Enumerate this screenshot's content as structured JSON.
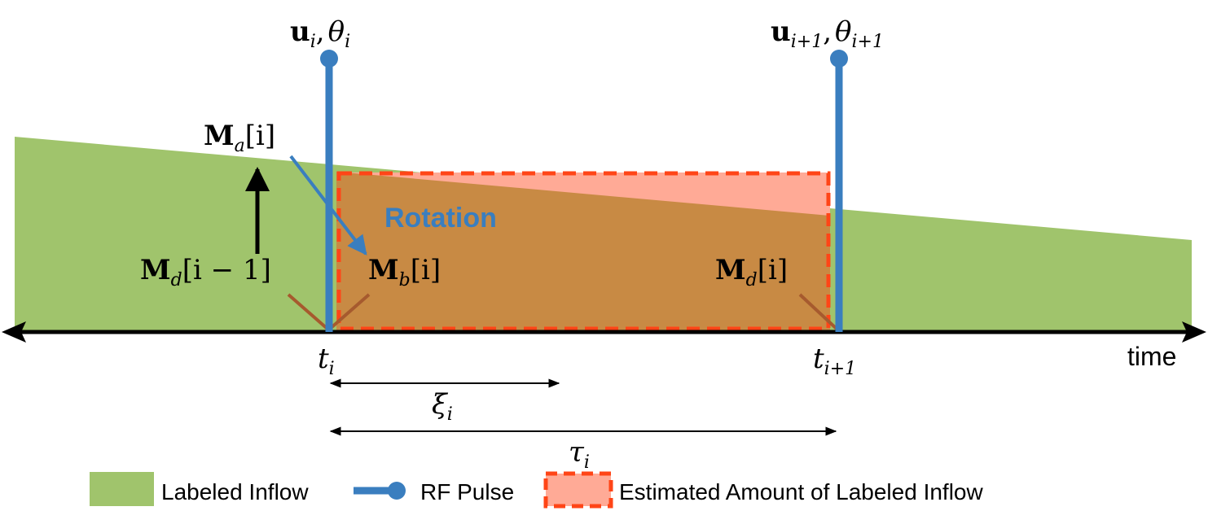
{
  "colors": {
    "labeled_inflow": "#a0c46c",
    "estimated_fill": "#ffaa96",
    "overlap_fill": "#c88a44",
    "estimated_border": "#ff4517",
    "rf_pulse": "#3a7ebf",
    "axis": "#000000",
    "diagonal": "#a65a2e"
  },
  "labels": {
    "pulse_i_vec": "u",
    "pulse_i_vec_sub": "i",
    "pulse_i_angle": "θ",
    "pulse_i_angle_sub": "i",
    "pulse_next_vec": "u",
    "pulse_next_vec_sub": "i+1",
    "pulse_next_angle": "θ",
    "pulse_next_angle_sub": "i+1",
    "comma": ",",
    "m_a": "M",
    "m_a_sub": "a",
    "m_a_idx": "[i]",
    "m_d_prev": "M",
    "m_d_prev_sub": "d",
    "m_d_prev_idx": "[i − 1]",
    "m_b": "M",
    "m_b_sub": "b",
    "m_b_idx": "[i]",
    "m_d": "M",
    "m_d_sub": "d",
    "m_d_idx": "[i]",
    "rotation": "Rotation",
    "t_i": "t",
    "t_i_sub": "i",
    "t_next": "t",
    "t_next_sub": "i+1",
    "time": "time",
    "xi": "ξ",
    "xi_sub": "i",
    "tau": "τ",
    "tau_sub": "i"
  },
  "legend": {
    "labeled_inflow": "Labeled Inflow",
    "rf_pulse": "RF Pulse",
    "estimated": "Estimated Amount of Labeled Inflow"
  }
}
